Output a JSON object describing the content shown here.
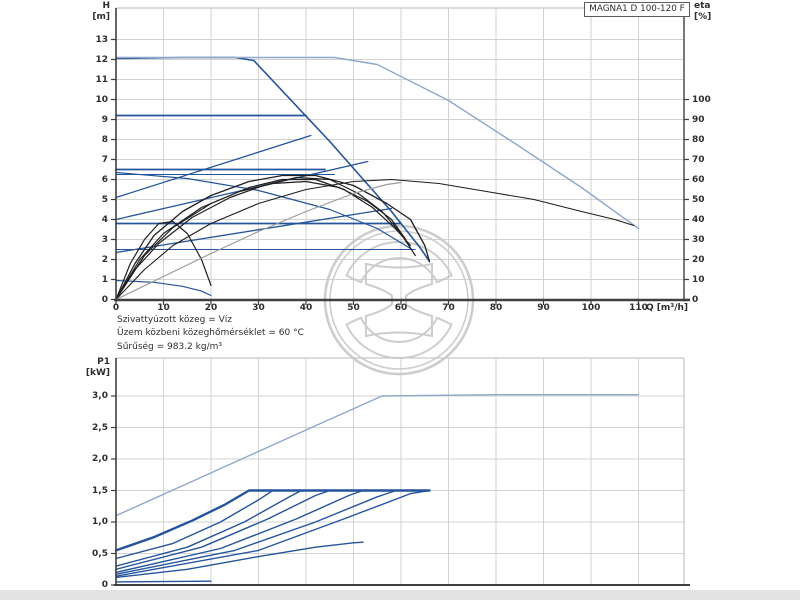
{
  "title_box": {
    "label": "MAGNA1 D 100-120 F"
  },
  "axes": {
    "head_label": {
      "line1": "H",
      "line2": "[m]"
    },
    "eta_label": {
      "line1": "eta",
      "line2": "[%]"
    },
    "flow_label": "Q [m³/h]",
    "power_label": {
      "line1": "P1",
      "line2": "[kW]"
    }
  },
  "notes": {
    "line1": "Szivattyúzott közeg = Víz",
    "line2": "Üzem közbeni közeghőmérséklet = 60 °C",
    "line3": "Sűrűség = 983.2 kg/m³"
  },
  "colors": {
    "dark": "#24549B",
    "light": "#8FA8C9",
    "black": "#1F1F1F",
    "gray": "#9B9B9B",
    "grid": "#D2D2D2",
    "border": "#B8B8B8",
    "axis": "#3F3F3F",
    "text": "#2E2E2E",
    "watermark": "#C8C8C8",
    "footer": "#E3E3E3"
  },
  "chart_data": [
    {
      "type": "line",
      "title": "MAGNA1 D 100-120 F",
      "xlabel": "Q [m³/h]",
      "ylabel": "H [m]",
      "y2label": "eta [%]",
      "xlim": [
        0,
        119.6
      ],
      "ylim": [
        0,
        14.6
      ],
      "y2lim": [
        0,
        146
      ],
      "grid": true,
      "x_ticks": [
        0,
        10,
        20,
        30,
        40,
        50,
        60,
        70,
        80,
        90,
        100,
        110
      ],
      "y_ticks": [
        0,
        1,
        2,
        3,
        4,
        5,
        6,
        7,
        8,
        9,
        10,
        11,
        12,
        13
      ],
      "y2_ticks": [
        0,
        10,
        20,
        30,
        40,
        50,
        60,
        70,
        80,
        90,
        100
      ],
      "legend_position": "none",
      "series": [
        {
          "name": "max-head-curve",
          "role": "dark",
          "width": 1.6,
          "axis": "H",
          "points": [
            [
              0,
              12.05
            ],
            [
              14,
              12.1
            ],
            [
              25,
              12.1
            ],
            [
              29,
              11.95
            ],
            [
              45,
              7.9
            ],
            [
              58,
              4.4
            ],
            [
              64,
              2.6
            ],
            [
              66,
              1.9
            ]
          ]
        },
        {
          "name": "parallel-max-head-curve",
          "role": "light",
          "width": 1.4,
          "axis": "H",
          "points": [
            [
              0,
              12.1
            ],
            [
              46,
              12.1
            ],
            [
              55,
              11.75
            ],
            [
              70,
              9.95
            ],
            [
              84,
              7.8
            ],
            [
              98,
              5.6
            ],
            [
              110,
              3.55
            ]
          ]
        },
        {
          "name": "const-pressure-9.2",
          "role": "dark",
          "width": 1.8,
          "axis": "H",
          "points": [
            [
              0,
              9.2
            ],
            [
              40,
              9.2
            ]
          ]
        },
        {
          "name": "const-pressure-6.5",
          "role": "dark",
          "width": 1.8,
          "axis": "H",
          "points": [
            [
              0,
              6.5
            ],
            [
              44,
              6.5
            ]
          ]
        },
        {
          "name": "const-pressure-6.25",
          "role": "dark",
          "width": 1.1,
          "axis": "H",
          "points": [
            [
              0,
              6.25
            ],
            [
              46,
              6.25
            ]
          ]
        },
        {
          "name": "const-pressure-3.8",
          "role": "dark",
          "width": 1.8,
          "axis": "H",
          "points": [
            [
              0,
              3.8
            ],
            [
              60,
              3.8
            ]
          ]
        },
        {
          "name": "const-pressure-2.5",
          "role": "dark",
          "width": 1.1,
          "axis": "H",
          "points": [
            [
              0,
              2.5
            ],
            [
              63,
              2.5
            ]
          ]
        },
        {
          "name": "prop-pressure-a",
          "role": "dark",
          "width": 1.3,
          "axis": "H",
          "points": [
            [
              0,
              5.1
            ],
            [
              41,
              8.2
            ]
          ]
        },
        {
          "name": "prop-pressure-b",
          "role": "dark",
          "width": 1.3,
          "axis": "H",
          "points": [
            [
              0,
              4.0
            ],
            [
              53,
              6.9
            ]
          ]
        },
        {
          "name": "prop-pressure-c",
          "role": "dark",
          "width": 1.3,
          "axis": "H",
          "points": [
            [
              0,
              2.35
            ],
            [
              58,
              4.55
            ]
          ]
        },
        {
          "name": "mid-speed-curve",
          "role": "dark",
          "width": 1.2,
          "axis": "H",
          "points": [
            [
              0,
              6.35
            ],
            [
              15,
              6.05
            ],
            [
              30,
              5.45
            ],
            [
              45,
              4.5
            ],
            [
              55,
              3.55
            ],
            [
              62,
              2.55
            ]
          ]
        },
        {
          "name": "min-speed-curve",
          "role": "dark",
          "width": 1.2,
          "axis": "H",
          "points": [
            [
              0,
              0.95
            ],
            [
              8,
              0.86
            ],
            [
              14,
              0.66
            ],
            [
              18,
              0.42
            ],
            [
              20,
              0.2
            ]
          ]
        },
        {
          "name": "eta-max-speed",
          "role": "black",
          "width": 1.3,
          "axis": "eta",
          "points": [
            [
              0,
              0
            ],
            [
              4,
              18
            ],
            [
              8,
              32
            ],
            [
              14,
              44
            ],
            [
              20,
              52
            ],
            [
              28,
              59
            ],
            [
              35,
              62
            ],
            [
              42,
              62
            ],
            [
              50,
              57
            ],
            [
              57,
              48
            ],
            [
              62,
              40
            ],
            [
              65,
              27
            ],
            [
              66,
              19
            ]
          ]
        },
        {
          "name": "eta-parallel",
          "role": "black",
          "width": 1.1,
          "axis": "eta",
          "points": [
            [
              0,
              0
            ],
            [
              6,
              15
            ],
            [
              12,
              27
            ],
            [
              20,
              38
            ],
            [
              30,
              48
            ],
            [
              40,
              55
            ],
            [
              50,
              59
            ],
            [
              58,
              60
            ],
            [
              68,
              58
            ],
            [
              78,
              54
            ],
            [
              88,
              50
            ],
            [
              98,
              44
            ],
            [
              105,
              40
            ],
            [
              109,
              37
            ]
          ]
        },
        {
          "name": "eta-curve-2",
          "role": "black",
          "width": 1.2,
          "axis": "eta",
          "points": [
            [
              0,
              0
            ],
            [
              5,
              20
            ],
            [
              10,
              33
            ],
            [
              18,
              46
            ],
            [
              26,
              54
            ],
            [
              33,
              58
            ],
            [
              40,
              59
            ],
            [
              47,
              56
            ],
            [
              53,
              49
            ],
            [
              58,
              40
            ],
            [
              61,
              30
            ]
          ]
        },
        {
          "name": "eta-curve-3",
          "role": "black",
          "width": 1.2,
          "axis": "eta",
          "points": [
            [
              0,
              0
            ],
            [
              6,
              22
            ],
            [
              12,
              36
            ],
            [
              20,
              48
            ],
            [
              28,
              56
            ],
            [
              35,
              60
            ],
            [
              42,
              60
            ],
            [
              48,
              55
            ],
            [
              54,
              46
            ],
            [
              59,
              35
            ],
            [
              62,
              27
            ]
          ]
        },
        {
          "name": "eta-curve-4",
          "role": "black",
          "width": 1.2,
          "axis": "eta",
          "points": [
            [
              0,
              0
            ],
            [
              4,
              15
            ],
            [
              9,
              28
            ],
            [
              16,
              41
            ],
            [
              24,
              51
            ],
            [
              31,
              57
            ],
            [
              38,
              61
            ],
            [
              45,
              60
            ],
            [
              51,
              53
            ],
            [
              56,
              44
            ],
            [
              60,
              33
            ],
            [
              63,
              22
            ]
          ]
        },
        {
          "name": "eta-min-speed",
          "role": "black",
          "width": 1.2,
          "axis": "eta",
          "points": [
            [
              0,
              0
            ],
            [
              3,
              18
            ],
            [
              6,
              30
            ],
            [
              9,
              38
            ],
            [
              12,
              39
            ],
            [
              15,
              33
            ],
            [
              18,
              20
            ],
            [
              20,
              7
            ]
          ]
        },
        {
          "name": "eta-gray-curve",
          "role": "gray",
          "width": 1.2,
          "axis": "eta",
          "points": [
            [
              0,
              0
            ],
            [
              10,
              11.5
            ],
            [
              20,
              23
            ],
            [
              30,
              34
            ],
            [
              40,
              44
            ],
            [
              50,
              53
            ],
            [
              57,
              57.5
            ],
            [
              60,
              58.5
            ]
          ]
        }
      ]
    },
    {
      "type": "line",
      "title": "",
      "xlabel": "",
      "ylabel": "P1 [kW]",
      "xlim": [
        0,
        119.6
      ],
      "ylim": [
        0,
        3.6
      ],
      "grid": true,
      "x_ticks": [
        0,
        10,
        20,
        30,
        40,
        50,
        60,
        70,
        80,
        90,
        100,
        110
      ],
      "x_tick_labels_visible": false,
      "y_ticks": [
        0,
        0.5,
        1.0,
        1.5,
        2.0,
        2.5,
        3.0
      ],
      "y_tick_labels": [
        "0",
        "0,5",
        "1,0",
        "1,5",
        "2,0",
        "2,5",
        "3,0"
      ],
      "legend_position": "none",
      "series": [
        {
          "name": "parallel-max-power",
          "role": "light",
          "width": 1.4,
          "points": [
            [
              0,
              1.1
            ],
            [
              20,
              1.78
            ],
            [
              40,
              2.46
            ],
            [
              56,
              3.0
            ],
            [
              80,
              3.02
            ],
            [
              110,
              3.02
            ]
          ]
        },
        {
          "name": "max-power-limit",
          "role": "dark",
          "width": 2.4,
          "points": [
            [
              0,
              0.55
            ],
            [
              8,
              0.76
            ],
            [
              16,
              1.02
            ],
            [
              23,
              1.28
            ],
            [
              28,
              1.5
            ],
            [
              66,
              1.5
            ]
          ]
        },
        {
          "name": "power-curve-b",
          "role": "dark",
          "width": 1.4,
          "points": [
            [
              0,
              0.42
            ],
            [
              12,
              0.66
            ],
            [
              22,
              1.0
            ],
            [
              30,
              1.35
            ],
            [
              33,
              1.5
            ]
          ]
        },
        {
          "name": "power-curve-c",
          "role": "dark",
          "width": 1.4,
          "points": [
            [
              0,
              0.3
            ],
            [
              15,
              0.6
            ],
            [
              27,
              1.0
            ],
            [
              36,
              1.38
            ],
            [
              39,
              1.5
            ]
          ]
        },
        {
          "name": "power-curve-d",
          "role": "dark",
          "width": 1.4,
          "points": [
            [
              0,
              0.25
            ],
            [
              18,
              0.6
            ],
            [
              32,
              1.05
            ],
            [
              42,
              1.42
            ],
            [
              45,
              1.5
            ]
          ]
        },
        {
          "name": "power-curve-e",
          "role": "dark",
          "width": 1.4,
          "points": [
            [
              0,
              0.2
            ],
            [
              22,
              0.58
            ],
            [
              38,
              1.05
            ],
            [
              49,
              1.42
            ],
            [
              52,
              1.5
            ]
          ]
        },
        {
          "name": "power-curve-f",
          "role": "dark",
          "width": 1.4,
          "points": [
            [
              0,
              0.17
            ],
            [
              25,
              0.55
            ],
            [
              42,
              1.0
            ],
            [
              55,
              1.4
            ],
            [
              59,
              1.5
            ]
          ]
        },
        {
          "name": "power-curve-g",
          "role": "dark",
          "width": 1.4,
          "points": [
            [
              0,
              0.14
            ],
            [
              30,
              0.55
            ],
            [
              48,
              1.05
            ],
            [
              62,
              1.45
            ],
            [
              66,
              1.5
            ]
          ]
        },
        {
          "name": "power-curve-h",
          "role": "dark",
          "width": 1.4,
          "points": [
            [
              0,
              0.12
            ],
            [
              15,
              0.25
            ],
            [
              30,
              0.45
            ],
            [
              42,
              0.6
            ],
            [
              50,
              0.67
            ],
            [
              52,
              0.68
            ]
          ]
        },
        {
          "name": "min-power-curve",
          "role": "dark",
          "width": 1.4,
          "points": [
            [
              0,
              0.05
            ],
            [
              20,
              0.06
            ]
          ]
        }
      ]
    }
  ],
  "watermark": {
    "name": "pump-shop-logo-watermark"
  }
}
